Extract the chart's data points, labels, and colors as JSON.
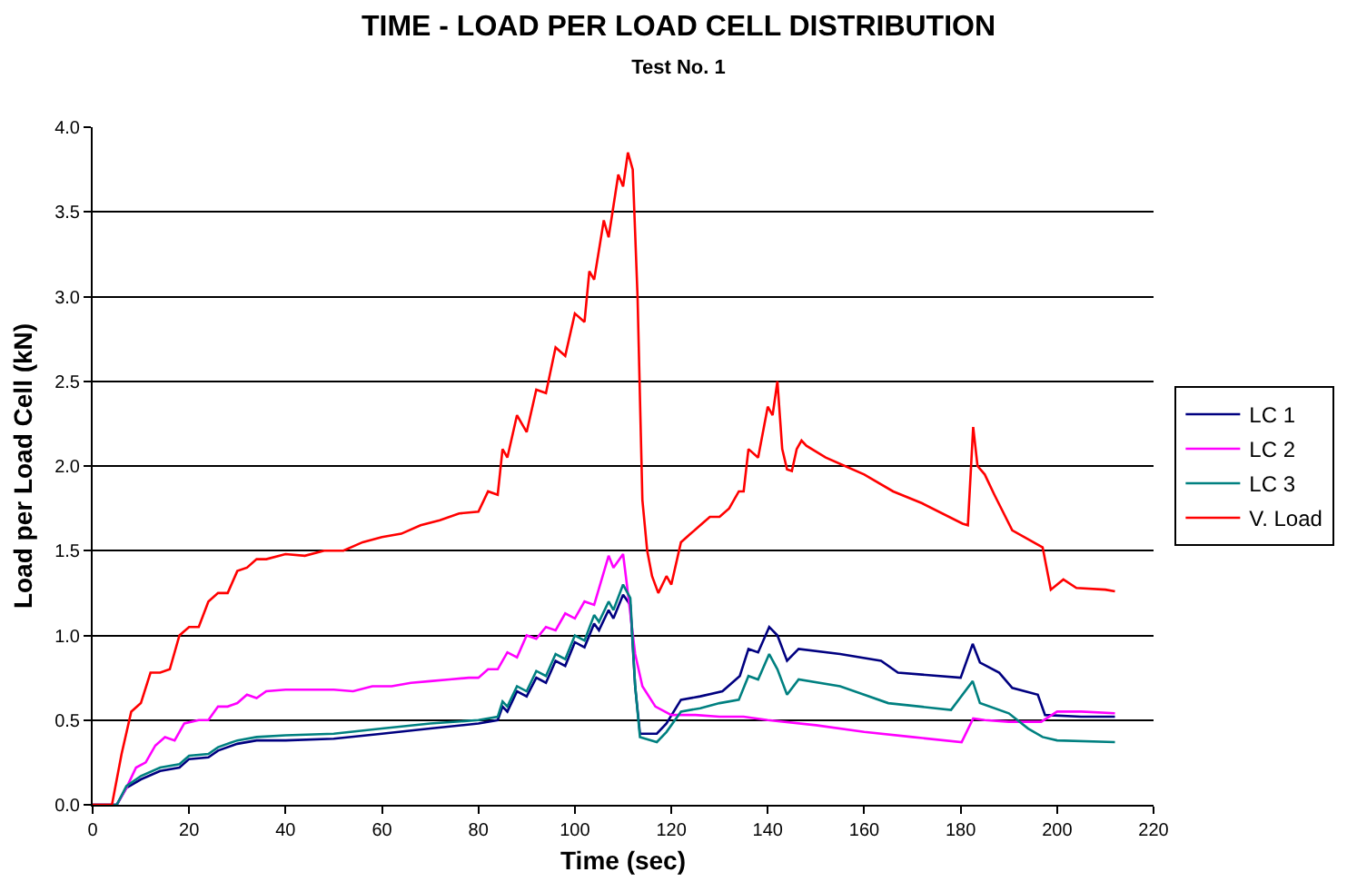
{
  "chart_data": {
    "type": "line",
    "title": "TIME - LOAD PER LOAD CELL DISTRIBUTION",
    "subtitle": "Test No. 1",
    "xlabel": "Time (sec)",
    "ylabel": "Load per Load Cell (kN)",
    "xlim": [
      0,
      220
    ],
    "xticks": [
      0,
      20,
      40,
      60,
      80,
      100,
      120,
      140,
      160,
      180,
      200,
      220
    ],
    "ylim": [
      0,
      4
    ],
    "yticks": [
      {
        "value": 0,
        "label": "0.0"
      },
      {
        "value": 0.5,
        "label": "0.5"
      },
      {
        "value": 1,
        "label": "1.0"
      },
      {
        "value": 1.5,
        "label": "1.5"
      },
      {
        "value": 2,
        "label": "2.0"
      },
      {
        "value": 2.5,
        "label": "2.5"
      },
      {
        "value": 3,
        "label": "3.0"
      },
      {
        "value": 3.5,
        "label": "3.5"
      },
      {
        "value": 4,
        "label": "4.0"
      }
    ],
    "grid": "y",
    "legend": "right",
    "marker": "none",
    "line_style": "solid",
    "series": [
      {
        "name": "LC 1",
        "color": "#000080",
        "x": [
          0,
          5,
          7,
          10,
          14,
          18,
          20,
          24,
          26,
          30,
          34,
          40,
          50,
          60,
          70,
          80,
          84,
          85,
          86,
          88,
          90,
          92,
          94,
          96,
          98,
          100,
          102,
          104,
          105,
          107,
          108,
          110,
          111.5,
          112.5,
          113.5,
          117,
          119,
          122,
          126,
          130.6,
          134.2,
          136,
          138,
          140.3,
          142,
          144,
          146.4,
          155,
          163.5,
          167,
          180,
          182.5,
          184,
          188,
          190.7,
          196,
          197.5,
          205,
          212
        ],
        "values": [
          0,
          0,
          0.1,
          0.15,
          0.2,
          0.22,
          0.27,
          0.28,
          0.32,
          0.36,
          0.38,
          0.38,
          0.39,
          0.42,
          0.45,
          0.48,
          0.5,
          0.58,
          0.55,
          0.67,
          0.64,
          0.75,
          0.72,
          0.85,
          0.82,
          0.96,
          0.93,
          1.07,
          1.03,
          1.15,
          1.1,
          1.24,
          1.18,
          0.7,
          0.42,
          0.42,
          0.48,
          0.62,
          0.64,
          0.67,
          0.76,
          0.92,
          0.9,
          1.05,
          1.0,
          0.85,
          0.92,
          0.89,
          0.85,
          0.78,
          0.75,
          0.95,
          0.84,
          0.78,
          0.69,
          0.65,
          0.53,
          0.52,
          0.52
        ]
      },
      {
        "name": "LC 2",
        "color": "#ff00ff",
        "x": [
          0,
          5,
          7,
          9,
          11,
          13,
          15,
          17,
          19,
          22,
          24,
          26,
          28,
          30,
          32,
          34,
          36,
          40,
          44,
          50,
          54,
          58,
          62,
          66,
          70,
          74,
          78,
          80,
          82,
          84,
          86,
          88,
          90,
          92,
          94,
          96,
          98,
          100,
          102,
          104,
          107,
          108,
          110,
          110.7,
          112.5,
          114,
          116.7,
          120,
          125,
          130,
          135,
          140,
          150,
          160,
          170,
          180.2,
          182.6,
          185,
          190,
          196.7,
          200,
          205,
          212
        ],
        "values": [
          0,
          0,
          0.1,
          0.22,
          0.25,
          0.35,
          0.4,
          0.38,
          0.48,
          0.5,
          0.5,
          0.58,
          0.58,
          0.6,
          0.65,
          0.63,
          0.67,
          0.68,
          0.68,
          0.68,
          0.67,
          0.7,
          0.7,
          0.72,
          0.73,
          0.74,
          0.75,
          0.75,
          0.8,
          0.8,
          0.9,
          0.87,
          1.0,
          0.98,
          1.05,
          1.03,
          1.13,
          1.1,
          1.2,
          1.18,
          1.47,
          1.4,
          1.48,
          1.32,
          0.89,
          0.7,
          0.58,
          0.53,
          0.53,
          0.52,
          0.52,
          0.5,
          0.47,
          0.43,
          0.4,
          0.37,
          0.51,
          0.5,
          0.49,
          0.49,
          0.55,
          0.55,
          0.54
        ]
      },
      {
        "name": "LC 3",
        "color": "#008080",
        "x": [
          0,
          5,
          7,
          10,
          14,
          18,
          20,
          24,
          26,
          30,
          34,
          40,
          50,
          60,
          70,
          80,
          84,
          85,
          86,
          88,
          90,
          92,
          94,
          96,
          98,
          100,
          102,
          104,
          105,
          107,
          108,
          110,
          111.5,
          112.5,
          113.5,
          117,
          119,
          122,
          126,
          130,
          134,
          136,
          138,
          140.3,
          142,
          144,
          146.4,
          155,
          165,
          178,
          182.5,
          184,
          190,
          194,
          197,
          200,
          212
        ],
        "values": [
          0,
          0,
          0.11,
          0.17,
          0.22,
          0.24,
          0.29,
          0.3,
          0.34,
          0.38,
          0.4,
          0.41,
          0.42,
          0.45,
          0.48,
          0.5,
          0.52,
          0.61,
          0.58,
          0.7,
          0.67,
          0.79,
          0.76,
          0.89,
          0.86,
          1.0,
          0.97,
          1.12,
          1.08,
          1.2,
          1.15,
          1.3,
          1.22,
          0.7,
          0.4,
          0.37,
          0.43,
          0.55,
          0.57,
          0.6,
          0.62,
          0.76,
          0.74,
          0.89,
          0.8,
          0.65,
          0.74,
          0.7,
          0.6,
          0.56,
          0.73,
          0.6,
          0.54,
          0.45,
          0.4,
          0.38,
          0.37
        ]
      },
      {
        "name": "V. Load",
        "color": "#ff0000",
        "x": [
          0,
          4,
          6,
          8,
          10,
          12,
          14,
          16,
          18,
          20,
          22,
          24,
          26,
          28,
          30,
          32,
          34,
          36,
          40,
          44,
          48,
          52,
          56,
          60,
          64,
          68,
          72,
          76,
          80,
          82,
          84,
          85,
          86,
          88,
          90,
          92,
          94,
          96,
          98,
          100,
          102,
          103,
          104,
          106,
          107,
          109,
          110,
          111,
          112,
          113,
          114,
          115,
          116,
          117.3,
          119,
          120,
          122,
          124,
          126,
          128,
          130,
          132,
          134,
          135,
          136,
          138,
          140,
          141,
          142,
          143,
          144,
          145,
          146,
          147,
          148,
          152,
          160,
          166,
          172,
          180.4,
          181.5,
          182.6,
          183.5,
          185,
          187,
          190.7,
          197,
          198.7,
          201.3,
          204,
          210,
          212
        ],
        "values": [
          0,
          0,
          0.3,
          0.55,
          0.6,
          0.78,
          0.78,
          0.8,
          1.0,
          1.05,
          1.05,
          1.2,
          1.25,
          1.25,
          1.38,
          1.4,
          1.45,
          1.45,
          1.48,
          1.47,
          1.5,
          1.5,
          1.55,
          1.58,
          1.6,
          1.65,
          1.68,
          1.72,
          1.73,
          1.85,
          1.83,
          2.1,
          2.05,
          2.3,
          2.2,
          2.45,
          2.43,
          2.7,
          2.65,
          2.9,
          2.85,
          3.15,
          3.1,
          3.45,
          3.35,
          3.72,
          3.65,
          3.85,
          3.75,
          3.0,
          1.8,
          1.5,
          1.35,
          1.25,
          1.35,
          1.3,
          1.55,
          1.6,
          1.65,
          1.7,
          1.7,
          1.75,
          1.85,
          1.85,
          2.1,
          2.05,
          2.35,
          2.3,
          2.5,
          2.1,
          1.98,
          1.97,
          2.1,
          2.15,
          2.12,
          2.05,
          1.95,
          1.85,
          1.78,
          1.66,
          1.65,
          2.23,
          2.0,
          1.95,
          1.83,
          1.62,
          1.52,
          1.27,
          1.33,
          1.28,
          1.27,
          1.26
        ]
      }
    ]
  }
}
